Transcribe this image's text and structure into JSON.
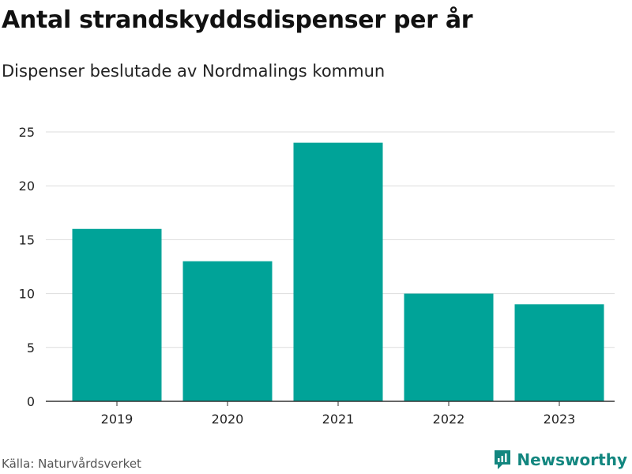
{
  "header": {
    "title": "Antal strandskyddsdispenser per år",
    "subtitle": "Dispenser beslutade av Nordmalings kommun"
  },
  "footer": {
    "source": "Källa: Naturvårdsverket",
    "brand": "Newsworthy",
    "brand_icon": "newsworthy-logo-icon"
  },
  "colors": {
    "bar": "#00a398",
    "brand": "#12867f"
  },
  "chart_data": {
    "type": "bar",
    "categories": [
      "2019",
      "2020",
      "2021",
      "2022",
      "2023"
    ],
    "values": [
      16,
      13,
      24,
      10,
      9
    ],
    "ylim": [
      0,
      25
    ],
    "yticks": [
      0,
      5,
      10,
      15,
      20,
      25
    ],
    "grid": true,
    "title": "Antal strandskyddsdispenser per år",
    "subtitle": "Dispenser beslutade av Nordmalings kommun"
  }
}
